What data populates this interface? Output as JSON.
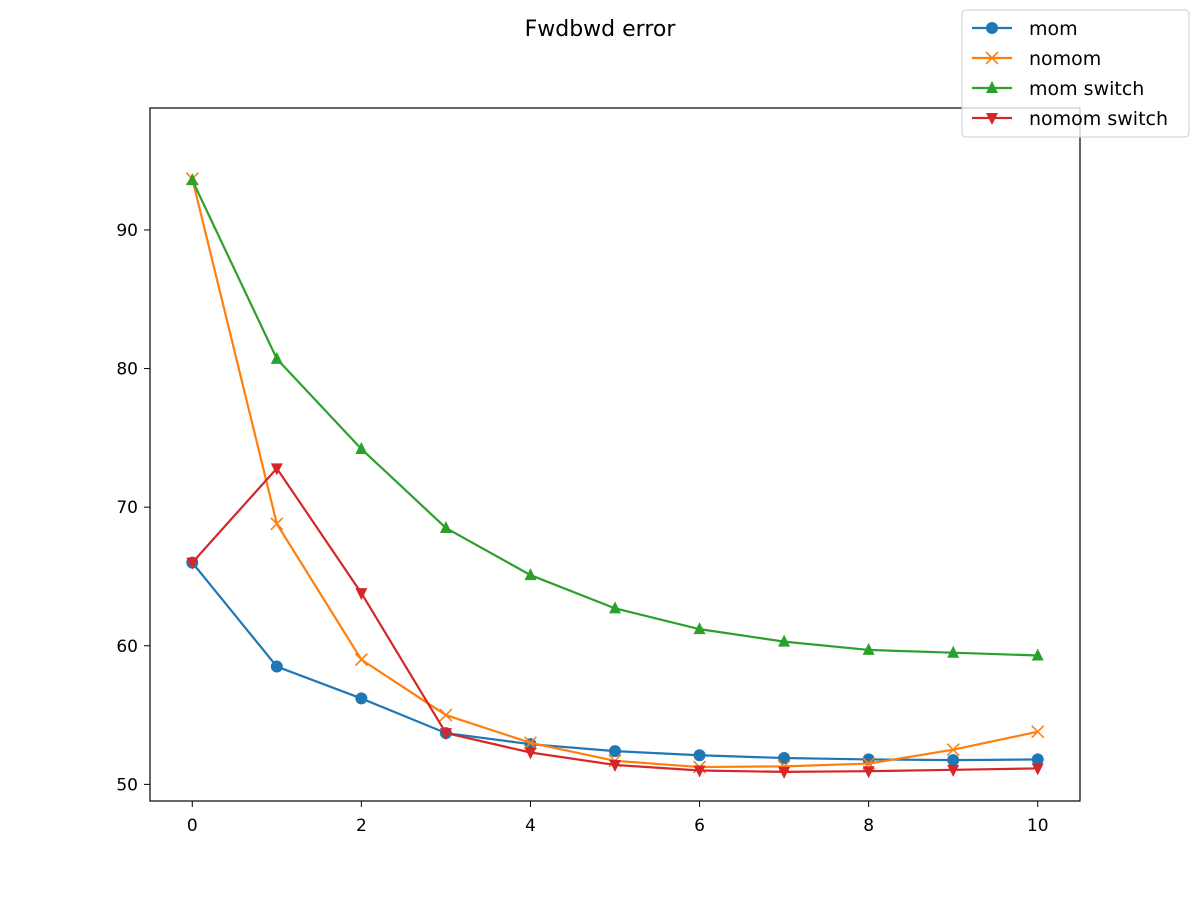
{
  "chart_data": {
    "type": "line",
    "title": "Fwdbwd error",
    "xlabel": "",
    "ylabel": "",
    "xlim": [
      -0.5,
      10.5
    ],
    "ylim": [
      48.8,
      98.8
    ],
    "xticks": [
      0,
      2,
      4,
      6,
      8,
      10
    ],
    "yticks": [
      50,
      60,
      70,
      80,
      90
    ],
    "grid": false,
    "legend_position": "top-right",
    "x": [
      0,
      1,
      2,
      3,
      4,
      5,
      6,
      7,
      8,
      9,
      10
    ],
    "series": [
      {
        "name": "mom",
        "color": "#1f77b4",
        "marker": "circle",
        "values": [
          66.0,
          58.5,
          56.2,
          53.7,
          52.9,
          52.4,
          52.1,
          51.9,
          51.8,
          51.75,
          51.8
        ]
      },
      {
        "name": "nomom",
        "color": "#ff7f0e",
        "marker": "x",
        "values": [
          93.7,
          68.8,
          59.0,
          55.0,
          53.0,
          51.7,
          51.25,
          51.3,
          51.5,
          52.5,
          53.8
        ]
      },
      {
        "name": "mom switch",
        "color": "#2ca02c",
        "marker": "triangle-up",
        "values": [
          93.6,
          80.7,
          74.2,
          68.5,
          65.1,
          62.7,
          61.2,
          60.3,
          59.7,
          59.5,
          59.3
        ]
      },
      {
        "name": "nomom switch",
        "color": "#d62728",
        "marker": "triangle-down",
        "values": [
          66.0,
          72.8,
          63.8,
          53.7,
          52.3,
          51.4,
          51.0,
          50.9,
          50.95,
          51.05,
          51.15
        ]
      }
    ]
  }
}
